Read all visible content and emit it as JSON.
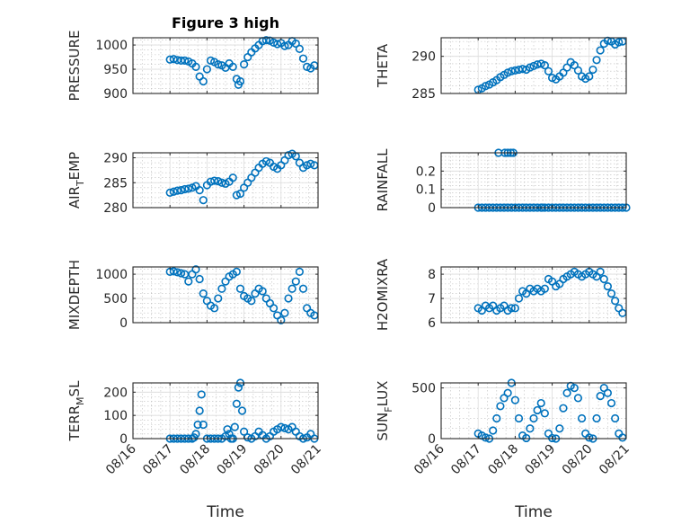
{
  "figure": {
    "title": "Figure 3 high"
  },
  "chart_data": [
    {
      "type": "scatter",
      "id": "pressure",
      "ylabel": "PRESSURE",
      "ylim": [
        900,
        1015
      ],
      "yticks": [
        900,
        950,
        1000
      ],
      "ytick_labels": [
        "900",
        "950",
        "1000"
      ],
      "x": [
        17.0,
        17.1,
        17.2,
        17.3,
        17.4,
        17.5,
        17.6,
        17.7,
        17.8,
        17.9,
        18.0,
        18.1,
        18.2,
        18.3,
        18.4,
        18.5,
        18.6,
        18.7,
        18.8,
        18.85,
        18.9,
        19.0,
        19.1,
        19.2,
        19.3,
        19.4,
        19.5,
        19.6,
        19.7,
        19.8,
        19.9,
        20.0,
        20.1,
        20.2,
        20.3,
        20.4,
        20.5,
        20.6,
        20.7,
        20.8,
        20.9
      ],
      "y": [
        970,
        971,
        969,
        968,
        968,
        966,
        962,
        955,
        935,
        925,
        950,
        968,
        965,
        960,
        958,
        953,
        962,
        955,
        930,
        918,
        925,
        960,
        975,
        985,
        993,
        1000,
        1008,
        1010,
        1009,
        1005,
        1002,
        1004,
        998,
        1000,
        1008,
        1003,
        992,
        972,
        955,
        952,
        958
      ]
    },
    {
      "type": "scatter",
      "id": "theta",
      "ylabel": "THETA",
      "ylim": [
        285,
        292.5
      ],
      "yticks": [
        285,
        290
      ],
      "ytick_labels": [
        "285",
        "290"
      ],
      "x": [
        17.0,
        17.1,
        17.2,
        17.3,
        17.4,
        17.5,
        17.6,
        17.7,
        17.8,
        17.9,
        18.0,
        18.1,
        18.2,
        18.3,
        18.4,
        18.5,
        18.6,
        18.7,
        18.8,
        18.9,
        19.0,
        19.1,
        19.2,
        19.3,
        19.4,
        19.5,
        19.6,
        19.7,
        19.8,
        19.9,
        20.0,
        20.1,
        20.2,
        20.3,
        20.4,
        20.5,
        20.6,
        20.7,
        20.8,
        20.9
      ],
      "y": [
        285.5,
        285.7,
        286.0,
        286.2,
        286.5,
        286.8,
        287.2,
        287.5,
        287.8,
        288.0,
        288.1,
        288.2,
        288.3,
        288.2,
        288.5,
        288.7,
        288.9,
        289.0,
        288.8,
        288.0,
        287.1,
        286.9,
        287.3,
        287.8,
        288.5,
        289.2,
        288.8,
        288.1,
        287.3,
        287.0,
        287.3,
        288.2,
        289.5,
        290.8,
        291.7,
        292.1,
        292.0,
        291.6,
        291.9,
        292.0
      ]
    },
    {
      "type": "scatter",
      "id": "air_temp",
      "ylabel": "AIR_TEMP",
      "ylim": [
        280,
        291
      ],
      "yticks": [
        280,
        285,
        290
      ],
      "ytick_labels": [
        "280",
        "285",
        "290"
      ],
      "x": [
        17.0,
        17.1,
        17.2,
        17.3,
        17.4,
        17.5,
        17.6,
        17.7,
        17.8,
        17.9,
        18.0,
        18.1,
        18.2,
        18.3,
        18.4,
        18.5,
        18.6,
        18.7,
        18.8,
        18.9,
        19.0,
        19.1,
        19.2,
        19.3,
        19.4,
        19.5,
        19.6,
        19.7,
        19.8,
        19.9,
        20.0,
        20.1,
        20.2,
        20.3,
        20.4,
        20.5,
        20.6,
        20.7,
        20.8,
        20.9
      ],
      "y": [
        283.0,
        283.2,
        283.4,
        283.5,
        283.7,
        283.8,
        284.0,
        284.3,
        283.5,
        281.5,
        284.5,
        285.2,
        285.4,
        285.3,
        285.0,
        284.8,
        285.2,
        286.0,
        282.5,
        282.8,
        284.0,
        285.0,
        286.0,
        287.0,
        288.0,
        288.8,
        289.3,
        289.0,
        288.2,
        287.8,
        288.5,
        289.5,
        290.5,
        290.8,
        290.3,
        289.0,
        288.0,
        288.5,
        288.8,
        288.5
      ]
    },
    {
      "type": "scatter",
      "id": "rainfall",
      "ylabel": "RAINFALL",
      "ylim": [
        0,
        0.3
      ],
      "yticks": [
        0,
        0.1,
        0.2
      ],
      "ytick_labels": [
        "0",
        "0.1",
        "0.2"
      ],
      "x": [
        17.0,
        17.1,
        17.2,
        17.3,
        17.4,
        17.5,
        17.6,
        17.7,
        17.8,
        17.9,
        18.0,
        18.1,
        18.2,
        18.3,
        18.4,
        18.5,
        18.6,
        18.7,
        18.8,
        18.9,
        19.0,
        19.1,
        19.2,
        19.3,
        19.4,
        19.5,
        19.6,
        19.7,
        19.8,
        19.9,
        20.0,
        20.1,
        20.2,
        20.3,
        20.4,
        20.5,
        20.6,
        20.7,
        20.8,
        20.9,
        21.0,
        17.55,
        17.72,
        17.8,
        17.88,
        17.95,
        18.72
      ],
      "y": [
        0,
        0,
        0,
        0,
        0,
        0,
        0,
        0,
        0,
        0,
        0,
        0,
        0,
        0,
        0,
        0,
        0,
        0,
        0,
        0,
        0,
        0,
        0,
        0,
        0,
        0,
        0,
        0,
        0,
        0,
        0,
        0,
        0,
        0,
        0,
        0,
        0,
        0,
        0,
        0,
        0,
        0.3,
        0.3,
        0.3,
        0.3,
        0.3,
        0
      ]
    },
    {
      "type": "scatter",
      "id": "mixdepth",
      "ylabel": "MIXDEPTH",
      "ylim": [
        0,
        1150
      ],
      "yticks": [
        0,
        500,
        1000
      ],
      "ytick_labels": [
        "0",
        "500",
        "1000"
      ],
      "x": [
        17.0,
        17.1,
        17.2,
        17.3,
        17.4,
        17.5,
        17.6,
        17.7,
        17.8,
        17.9,
        18.0,
        18.1,
        18.2,
        18.3,
        18.4,
        18.5,
        18.6,
        18.7,
        18.8,
        18.9,
        19.0,
        19.1,
        19.2,
        19.3,
        19.4,
        19.5,
        19.6,
        19.7,
        19.8,
        19.9,
        20.0,
        20.1,
        20.2,
        20.3,
        20.4,
        20.5,
        20.6,
        20.7,
        20.8,
        20.9
      ],
      "y": [
        1050,
        1060,
        1040,
        1020,
        1000,
        850,
        1000,
        1100,
        900,
        600,
        450,
        350,
        300,
        500,
        700,
        850,
        950,
        1000,
        1050,
        700,
        550,
        500,
        450,
        600,
        700,
        650,
        500,
        400,
        300,
        150,
        50,
        200,
        500,
        700,
        850,
        1050,
        700,
        300,
        200,
        150
      ]
    },
    {
      "type": "scatter",
      "id": "h2omixra",
      "ylabel": "H2OMIXRA",
      "ylim": [
        6,
        8.3
      ],
      "yticks": [
        6,
        7,
        8
      ],
      "ytick_labels": [
        "6",
        "7",
        "8"
      ],
      "x": [
        17.0,
        17.1,
        17.2,
        17.3,
        17.4,
        17.5,
        17.6,
        17.7,
        17.8,
        17.9,
        18.0,
        18.1,
        18.2,
        18.3,
        18.4,
        18.5,
        18.6,
        18.7,
        18.8,
        18.9,
        19.0,
        19.1,
        19.2,
        19.3,
        19.4,
        19.5,
        19.6,
        19.7,
        19.8,
        19.9,
        20.0,
        20.1,
        20.2,
        20.3,
        20.4,
        20.5,
        20.6,
        20.7,
        20.8,
        20.9
      ],
      "y": [
        6.6,
        6.5,
        6.7,
        6.6,
        6.7,
        6.5,
        6.6,
        6.7,
        6.5,
        6.6,
        6.6,
        7.0,
        7.3,
        7.2,
        7.4,
        7.3,
        7.4,
        7.3,
        7.4,
        7.8,
        7.7,
        7.5,
        7.6,
        7.8,
        7.9,
        8.0,
        8.1,
        8.0,
        7.9,
        8.0,
        8.1,
        8.0,
        7.9,
        8.1,
        7.8,
        7.5,
        7.2,
        6.9,
        6.6,
        6.4
      ]
    },
    {
      "type": "scatter",
      "id": "terr_msl",
      "ylabel": "TERR_MSL",
      "ylim": [
        0,
        240
      ],
      "yticks": [
        0,
        100,
        200
      ],
      "ytick_labels": [
        "0",
        "100",
        "200"
      ],
      "x": [
        17.0,
        17.1,
        17.2,
        17.3,
        17.4,
        17.5,
        17.6,
        17.65,
        17.7,
        17.75,
        17.8,
        17.85,
        17.9,
        18.0,
        18.1,
        18.2,
        18.3,
        18.4,
        18.5,
        18.55,
        18.6,
        18.65,
        18.7,
        18.75,
        18.8,
        18.85,
        18.9,
        18.95,
        19.0,
        19.1,
        19.2,
        19.3,
        19.4,
        19.5,
        19.6,
        19.7,
        19.8,
        19.9,
        20.0,
        20.1,
        20.2,
        20.3,
        20.4,
        20.5,
        20.6,
        20.7,
        20.8,
        20.9
      ],
      "y": [
        0,
        0,
        0,
        0,
        0,
        0,
        0,
        5,
        20,
        60,
        120,
        190,
        60,
        0,
        0,
        0,
        0,
        0,
        10,
        40,
        20,
        0,
        0,
        50,
        150,
        220,
        240,
        120,
        30,
        5,
        0,
        10,
        30,
        15,
        0,
        10,
        30,
        40,
        50,
        45,
        40,
        50,
        30,
        10,
        0,
        5,
        20,
        0
      ]
    },
    {
      "type": "scatter",
      "id": "sun_flux",
      "ylabel": "SUN_FLUX",
      "ylim": [
        0,
        550
      ],
      "yticks": [
        0,
        500
      ],
      "ytick_labels": [
        "0",
        "500"
      ],
      "x": [
        17.0,
        17.1,
        17.2,
        17.3,
        17.4,
        17.5,
        17.6,
        17.7,
        17.8,
        17.9,
        18.0,
        18.1,
        18.2,
        18.3,
        18.4,
        18.5,
        18.6,
        18.7,
        18.8,
        18.9,
        19.0,
        19.1,
        19.2,
        19.3,
        19.4,
        19.5,
        19.6,
        19.7,
        19.8,
        19.9,
        20.0,
        20.1,
        20.2,
        20.3,
        20.4,
        20.5,
        20.6,
        20.7,
        20.8,
        20.9
      ],
      "y": [
        50,
        30,
        10,
        0,
        80,
        200,
        320,
        400,
        450,
        550,
        380,
        200,
        30,
        5,
        100,
        200,
        280,
        350,
        250,
        50,
        5,
        0,
        100,
        300,
        450,
        520,
        500,
        400,
        200,
        50,
        10,
        0,
        200,
        420,
        500,
        450,
        350,
        200,
        50,
        10
      ]
    }
  ],
  "xaxis": {
    "label": "Time",
    "xlim": [
      16,
      21
    ],
    "ticks": [
      16,
      17,
      18,
      19,
      20,
      21
    ],
    "tick_labels": [
      "08/16",
      "08/17",
      "08/18",
      "08/19",
      "08/20",
      "08/21"
    ]
  }
}
